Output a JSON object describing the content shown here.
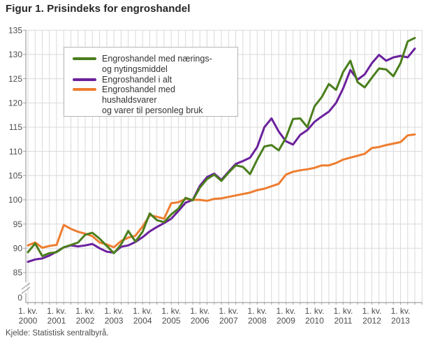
{
  "title": "Figur 1. Prisindeks for engroshandel",
  "source": "Kjelde: Statistisk sentralbyrå.",
  "legend": {
    "items": [
      {
        "line1": "Engroshandel med nærings-",
        "line2": "og nytingsmiddel"
      },
      {
        "line1": "Engroshandel i alt",
        "line2": ""
      },
      {
        "line1": "Engroshandel med hushaldsvarer",
        "line2": "og varer til personleg bruk"
      }
    ]
  },
  "chart_data": {
    "type": "line",
    "title": "Figur 1. Prisindeks for engroshandel",
    "x_tick_prefix": "1. kv.",
    "x_years": [
      "2000",
      "2001",
      "2002",
      "2003",
      "2004",
      "2005",
      "2006",
      "2007",
      "2008",
      "2009",
      "2010",
      "2011",
      "2012",
      "2013"
    ],
    "x_frequency": "quarterly",
    "x_range": [
      "2000 Q1",
      "2013 Q3"
    ],
    "y_ticks": [
      135,
      130,
      125,
      120,
      115,
      110,
      105,
      100,
      95,
      90,
      85
    ],
    "y_zero_label": "0",
    "axis_break": true,
    "grid": true,
    "grid_color": "#d9d9d9",
    "axis_color": "#a0a0a0",
    "legend_position": "top-left-inside",
    "series": [
      {
        "name": "Engroshandel med nærings- og nytingsmiddel",
        "color": "#4a7e1c",
        "values": [
          89.2,
          91.0,
          88.4,
          89.0,
          89.2,
          90.2,
          90.7,
          91.2,
          92.8,
          93.2,
          92.0,
          90.5,
          89.0,
          90.8,
          93.6,
          91.4,
          93.4,
          97.2,
          95.8,
          95.4,
          97.0,
          98.2,
          100.4,
          99.9,
          102.5,
          104.3,
          105.2,
          103.9,
          105.6,
          107.1,
          106.8,
          105.3,
          108.3,
          111.0,
          111.3,
          110.2,
          112.8,
          116.7,
          116.8,
          115.0,
          119.3,
          121.2,
          123.9,
          122.7,
          126.4,
          128.7,
          124.3,
          123.2,
          125.2,
          127.1,
          126.9,
          125.5,
          128.2,
          132.7,
          133.4
        ]
      },
      {
        "name": "Engroshandel i alt",
        "color": "#6b219d",
        "values": [
          87.2,
          87.7,
          87.9,
          88.5,
          89.3,
          90.2,
          90.6,
          90.4,
          90.6,
          90.9,
          90.0,
          89.3,
          89.1,
          90.3,
          90.6,
          91.3,
          92.3,
          93.5,
          94.4,
          95.2,
          96.1,
          97.7,
          99.4,
          100.0,
          102.9,
          104.7,
          105.4,
          104.1,
          105.8,
          107.4,
          108.0,
          108.7,
          110.9,
          115.0,
          116.8,
          114.1,
          112.1,
          111.4,
          113.4,
          114.4,
          116.1,
          117.2,
          118.2,
          120.0,
          123.0,
          126.8,
          124.8,
          125.9,
          128.2,
          129.9,
          128.7,
          129.4,
          129.7,
          129.4,
          131.2
        ]
      },
      {
        "name": "Engroshandel med hushaldsvarer og varer til personleg bruk",
        "color": "#ee7d30",
        "values": [
          90.6,
          91.2,
          90.1,
          90.5,
          90.7,
          94.8,
          94.0,
          93.4,
          93.0,
          92.5,
          91.2,
          90.8,
          90.2,
          91.5,
          92.2,
          92.6,
          94.5,
          96.8,
          96.5,
          96.1,
          99.3,
          99.5,
          100.2,
          100.0,
          100.0,
          99.8,
          100.2,
          100.3,
          100.6,
          100.9,
          101.2,
          101.5,
          102.0,
          102.3,
          102.8,
          103.3,
          105.2,
          105.8,
          106.1,
          106.3,
          106.6,
          107.1,
          107.1,
          107.6,
          108.3,
          108.7,
          109.1,
          109.5,
          110.7,
          110.9,
          111.3,
          111.6,
          111.9,
          113.3,
          113.5
        ]
      }
    ]
  }
}
